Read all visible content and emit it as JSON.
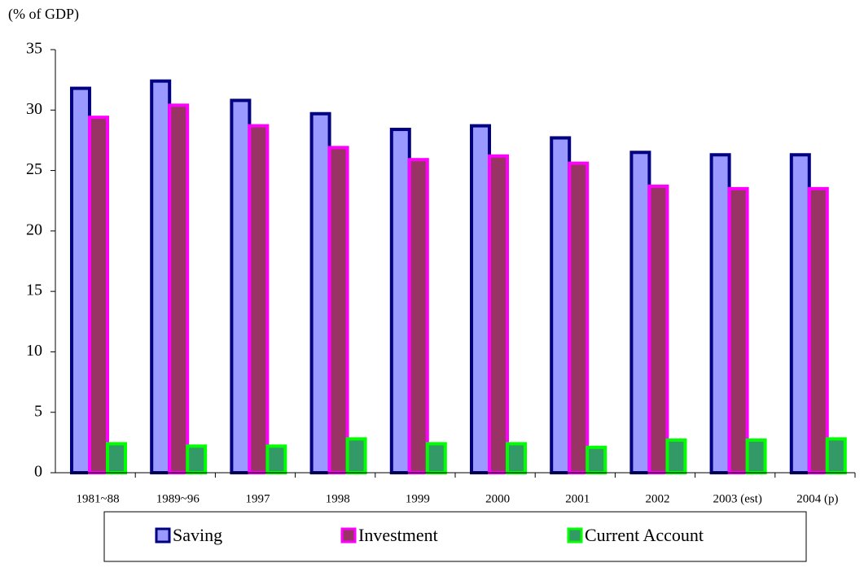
{
  "chart_data": {
    "type": "bar",
    "y_label": "(% of GDP)",
    "categories": [
      "1981~88",
      "1989~96",
      "1997",
      "1998",
      "1999",
      "2000",
      "2001",
      "2002",
      "2003 (est)",
      "2004 (p)"
    ],
    "series": [
      {
        "name": "Saving",
        "color": "#9999ff",
        "edge_color": "#000080",
        "values": [
          31.8,
          32.4,
          30.8,
          29.7,
          28.4,
          28.7,
          27.7,
          26.5,
          26.3,
          26.3
        ]
      },
      {
        "name": "Investment",
        "color": "#993366",
        "edge_color": "#ff00ff",
        "values": [
          29.4,
          30.4,
          28.7,
          26.9,
          25.9,
          26.2,
          25.6,
          23.7,
          23.5,
          23.5
        ]
      },
      {
        "name": "Current Account",
        "color": "#339966",
        "edge_color": "#00ff00",
        "values": [
          2.4,
          2.2,
          2.2,
          2.8,
          2.4,
          2.4,
          2.1,
          2.7,
          2.7,
          2.8
        ]
      }
    ],
    "ylim": [
      0,
      35
    ],
    "yticks": [
      0,
      5,
      10,
      15,
      20,
      25,
      30,
      35
    ],
    "grid": false,
    "legend": "bottom"
  }
}
